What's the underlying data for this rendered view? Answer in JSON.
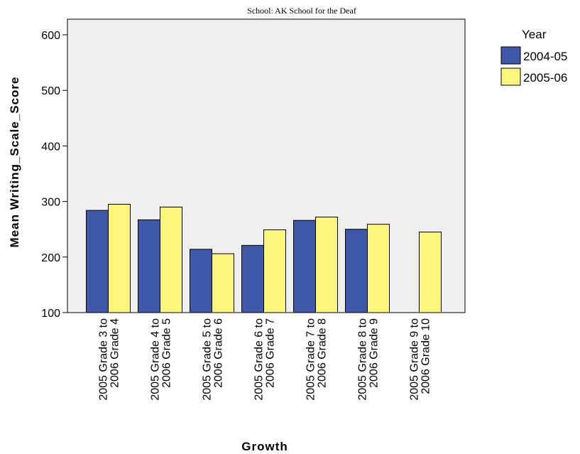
{
  "chart_data": {
    "type": "bar",
    "title": "School: AK School for the Deaf",
    "xlabel": "Growth",
    "ylabel": "Mean Writing_Scale_Score",
    "ylim": [
      100,
      620
    ],
    "yticks": [
      "100",
      "200",
      "300",
      "400",
      "500",
      "600"
    ],
    "categories": [
      [
        "2005 Grade 3 to",
        "2006 Grade 4"
      ],
      [
        "2005 Grade 4 to",
        "2006 Grade 5"
      ],
      [
        "2005 Grade 5 to",
        "2006 Grade 6"
      ],
      [
        "2005 Grade 6 to",
        "2006 Grade 7"
      ],
      [
        "2005 Grade 7 to",
        "2006 Grade 8"
      ],
      [
        "2005 Grade 8 to",
        "2006 Grade 9"
      ],
      [
        "2005 Grade 9 to",
        "2006 Grade 10"
      ]
    ],
    "legend_title": "Year",
    "legend_position": "top-right, outside plot",
    "grid": false,
    "plot_background": "#efefef",
    "series": [
      {
        "name": "2004-05",
        "color": "#3f58a8",
        "values": [
          284,
          267,
          214,
          221,
          266,
          250,
          null
        ]
      },
      {
        "name": "2005-06",
        "color": "#fcf77c",
        "values": [
          295,
          290,
          206,
          249,
          272,
          259,
          245
        ]
      }
    ]
  }
}
